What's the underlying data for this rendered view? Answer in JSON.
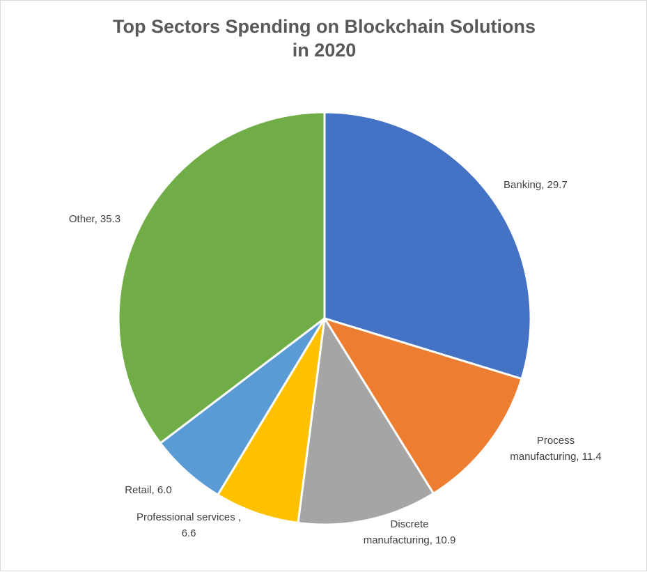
{
  "chart_data": {
    "type": "pie",
    "title": "Top Sectors Spending on Blockchain Solutions in 2020",
    "title_lines": [
      "Top Sectors Spending on Blockchain Solutions",
      "in 2020"
    ],
    "slices": [
      {
        "name": "Banking",
        "value": 29.7,
        "color": "#4472c4",
        "label_lines": [
          "Banking, 29.7"
        ]
      },
      {
        "name": "Process manufacturing",
        "value": 11.4,
        "color": "#ed7d31",
        "label_lines": [
          "Process",
          "manufacturing, 11.4"
        ]
      },
      {
        "name": "Discrete manufacturing",
        "value": 10.9,
        "color": "#a5a5a5",
        "label_lines": [
          "Discrete",
          "manufacturing, 10.9"
        ]
      },
      {
        "name": "Professional services",
        "value": 6.6,
        "color": "#ffc000",
        "label_lines": [
          "Professional services ,",
          "6.6"
        ]
      },
      {
        "name": "Retail",
        "value": 6.0,
        "color": "#5b9bd5",
        "label_lines": [
          "Retail,  6.0"
        ]
      },
      {
        "name": "Other",
        "value": 35.3,
        "color": "#70ad47",
        "label_lines": [
          "Other, 35.3"
        ]
      }
    ],
    "legend": "none",
    "data_labels": "outside"
  }
}
